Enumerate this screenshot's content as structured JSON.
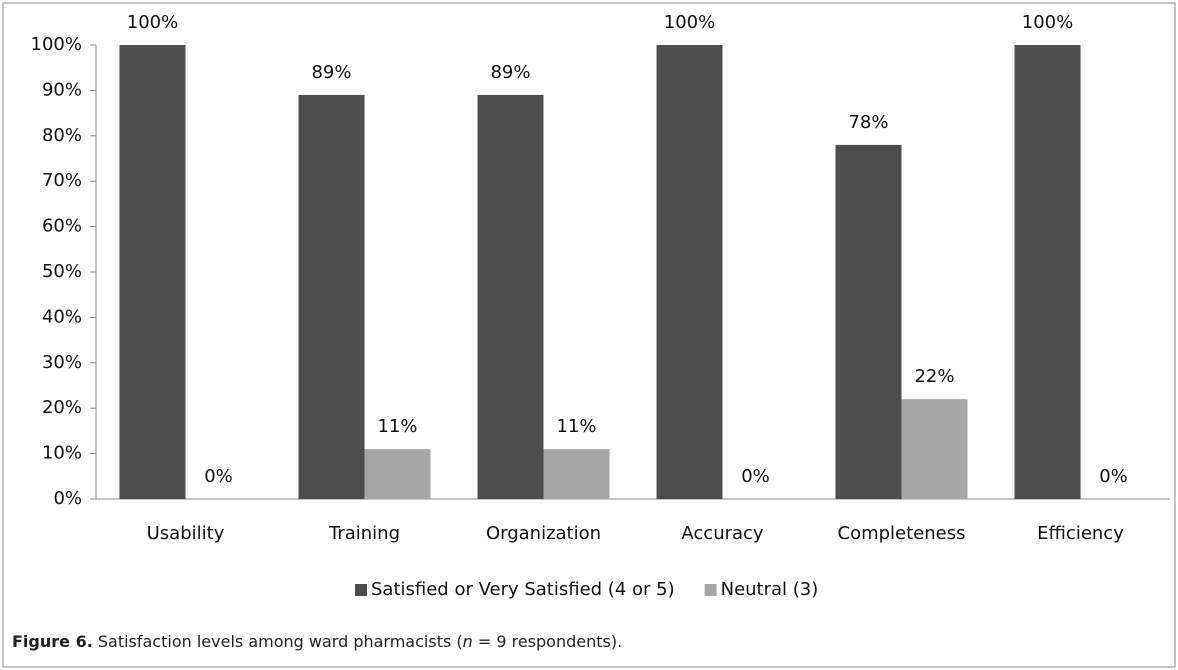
{
  "chart_data": {
    "type": "bar",
    "categories": [
      "Usability",
      "Training",
      "Organization",
      "Accuracy",
      "Completeness",
      "Efficiency"
    ],
    "series": [
      {
        "name": "Satisfied or Very Satisfied (4 or 5)",
        "color": "#4d4d4d",
        "values": [
          100,
          89,
          89,
          100,
          78,
          100
        ],
        "value_labels": [
          "100%",
          "89%",
          "89%",
          "100%",
          "78%",
          "100%"
        ]
      },
      {
        "name": "Neutral (3)",
        "color": "#a6a6a6",
        "values": [
          0,
          11,
          11,
          0,
          22,
          0
        ],
        "value_labels": [
          "0%",
          "11%",
          "11%",
          "0%",
          "22%",
          "0%"
        ]
      }
    ],
    "ylim": [
      0,
      100
    ],
    "yticks": [
      {
        "value": 0,
        "label": "0%"
      },
      {
        "value": 10,
        "label": "10%"
      },
      {
        "value": 20,
        "label": "20%"
      },
      {
        "value": 30,
        "label": "30%"
      },
      {
        "value": 40,
        "label": "40%"
      },
      {
        "value": 50,
        "label": "50%"
      },
      {
        "value": 60,
        "label": "60%"
      },
      {
        "value": 70,
        "label": "70%"
      },
      {
        "value": 80,
        "label": "80%"
      },
      {
        "value": 90,
        "label": "90%"
      },
      {
        "value": 100,
        "label": "100%"
      }
    ],
    "grid": false,
    "legend": "bottom",
    "caption": {
      "label": "Figure 6.",
      "parts": [
        "Satisfaction levels among ward pharmacists (",
        "n",
        " = 9 respondents)."
      ]
    }
  }
}
